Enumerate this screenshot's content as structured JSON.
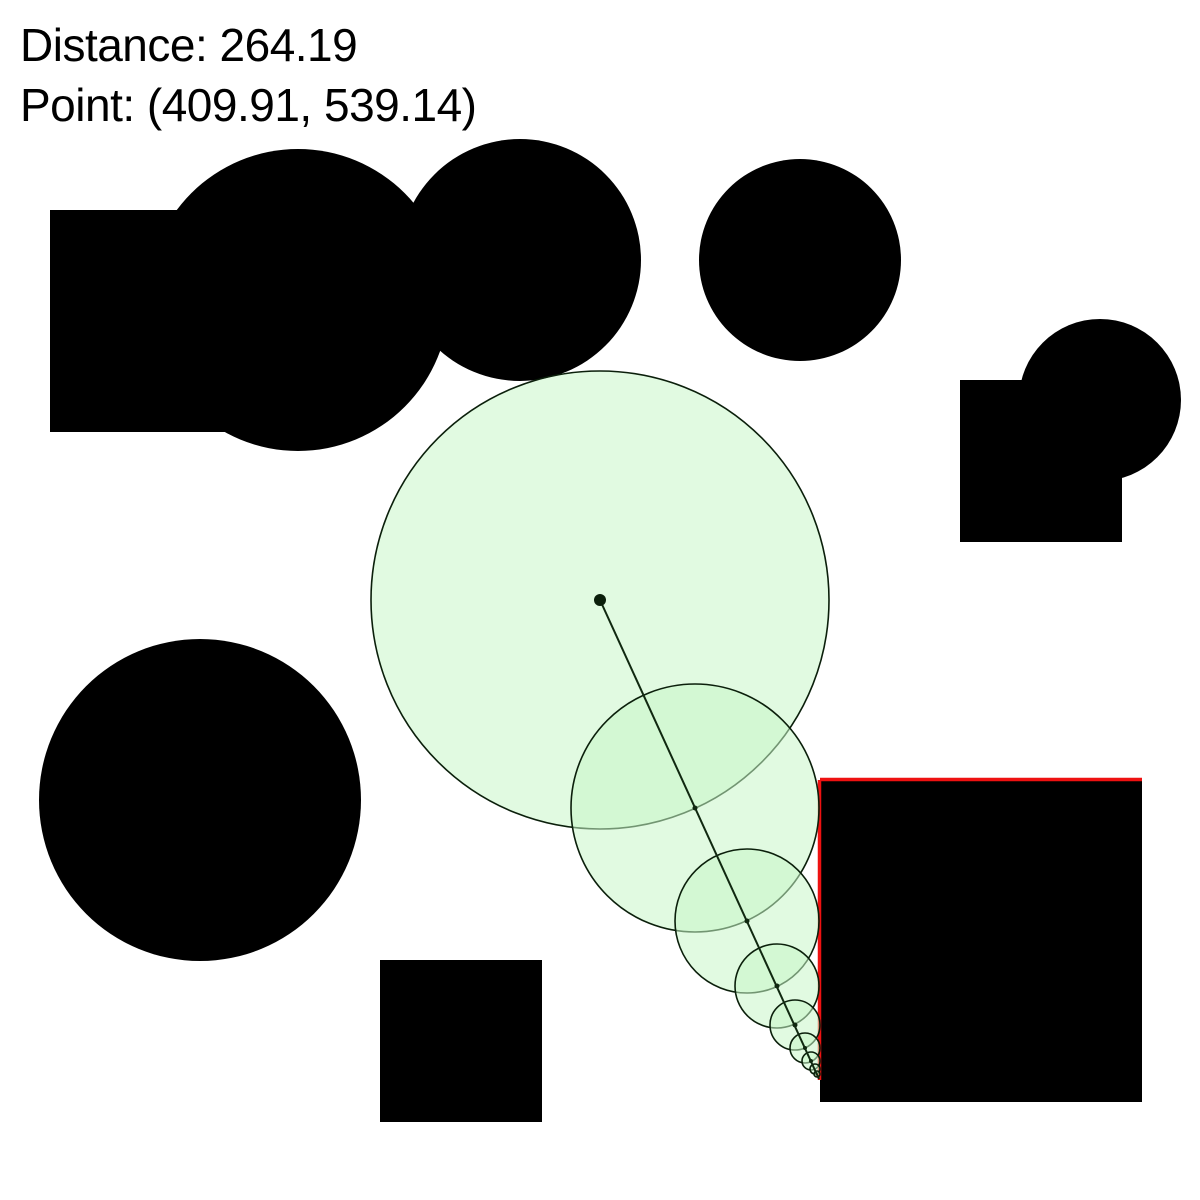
{
  "readout": {
    "distance_text": "Distance: 264.19",
    "point_text": "Point: (409.91, 539.14)"
  },
  "colors": {
    "obstacle": "#000000",
    "probe_fill": "#c8f5c8",
    "probe_stroke": "#0b1f0b",
    "ray": "#102810",
    "hit_edge": "#ee1111",
    "background": "#ffffff"
  }
}
